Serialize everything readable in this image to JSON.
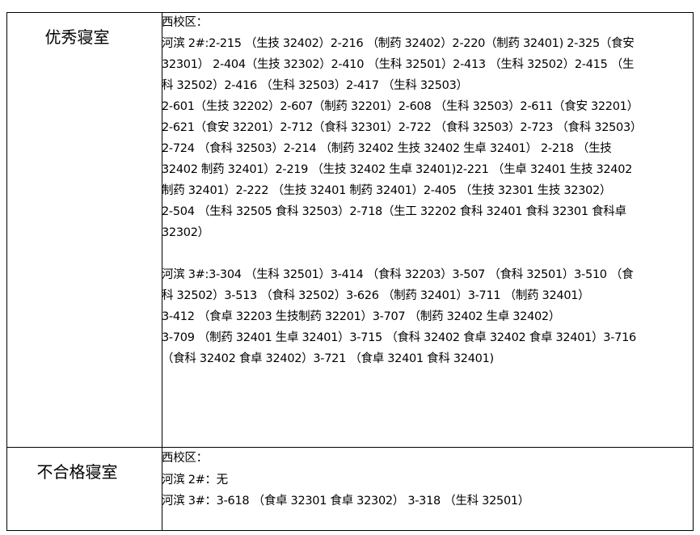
{
  "rows": [
    {
      "label": "优秀寝室",
      "lines": [
        "西校区：",
        "河滨 2#:2-215 （生技 32402）2-216 （制药 32402）2-220（制药 32401) 2-325（食安",
        "32301） 2-404（生技 32302）2-410 （生科 32501）2-413 （生科 32502）2-415 （生",
        "科 32502）2-416 （生科 32503）2-417 （生科 32503）",
        "2-601（生技 32202）2-607（制药 32201）2-608 （生科 32503）2-611（食安 32201）",
        "2-621（食安 32201）2-712（食科 32301）2-722 （食科 32503）2-723 （食科 32503）",
        "2-724 （食科 32503）2-214 （制药 32402 生技 32402 生卓 32401） 2-218 （生技",
        "32402 制药 32401）2-219 （生技 32402 生卓 32401)2-221 （生卓 32401 生技 32402",
        "制药 32401）2-222 （生技 32401 制药 32401）2-405 （生技 32301 生技 32302）",
        "2-504 （生科 32505 食科 32503）2-718（生工 32202 食科 32401 食科 32301 食科卓",
        "32302）",
        "",
        "河滨 3#:3-304 （生科 32501）3-414 （食科 32203）3-507 （食科 32501）3-510 （食",
        "科 32502）3-513 （食科 32502）3-626 （制药 32401）3-711 （制药 32401）",
        "3-412 （食卓 32203 生技制药 32201）3-707 （制药 32402 生卓 32402）",
        "3-709 （制药 32401 生卓 32401）3-715 （食科 32402 食卓 32402 食卓 32401）3-716",
        "（食科 32402 食卓 32402）3-721 （食卓 32401 食科 32401)"
      ]
    },
    {
      "label": "不合格寝室",
      "lines": [
        "西校区：",
        "河滨 2#：无",
        "河滨 3#：3-618 （食卓 32301 食卓 32302） 3-318 （生科 32501）"
      ]
    }
  ]
}
